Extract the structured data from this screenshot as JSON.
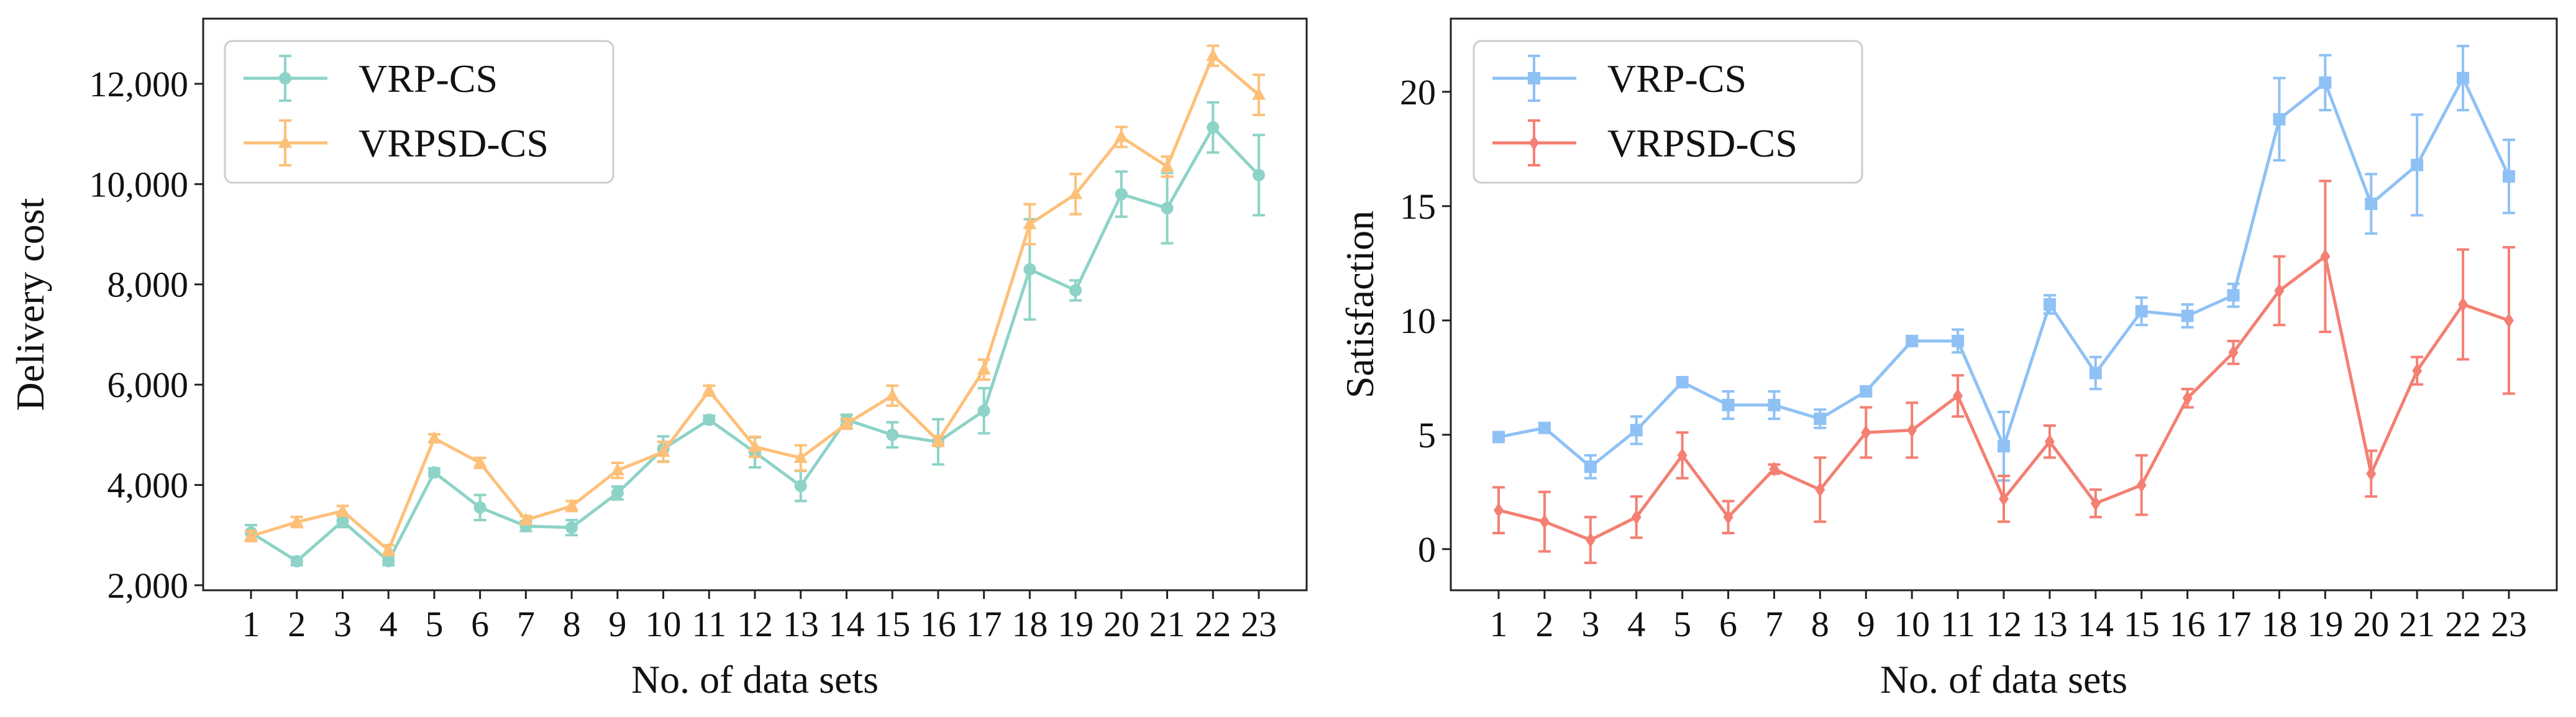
{
  "chart_data": [
    {
      "type": "line",
      "title": "",
      "xlabel": "No. of data sets",
      "ylabel": "Delivery cost",
      "x": [
        1,
        2,
        3,
        4,
        5,
        6,
        7,
        8,
        9,
        10,
        11,
        12,
        13,
        14,
        15,
        16,
        17,
        18,
        19,
        20,
        21,
        22,
        23
      ],
      "xticks": [
        "1",
        "2",
        "3",
        "4",
        "5",
        "6",
        "7",
        "8",
        "9",
        "10",
        "11",
        "12",
        "13",
        "14",
        "15",
        "16",
        "17",
        "18",
        "19",
        "20",
        "21",
        "22",
        "23"
      ],
      "ylim": [
        1900,
        13300
      ],
      "yticks": [
        2000,
        4000,
        6000,
        8000,
        10000,
        12000
      ],
      "ytick_labels": [
        "2,000",
        "4,000",
        "6,000",
        "8,000",
        "10,000",
        "12,000"
      ],
      "legend_position": "top-left",
      "series": [
        {
          "name": "VRP-CS",
          "color": "#8dd3c7",
          "marker": "circle",
          "values": [
            3050,
            2480,
            3280,
            2480,
            4250,
            3550,
            3180,
            3150,
            3840,
            4720,
            5300,
            4650,
            3980,
            5300,
            5000,
            4860,
            5480,
            8300,
            7880,
            9800,
            9520,
            11130,
            10180
          ],
          "errors": [
            150,
            80,
            120,
            80,
            80,
            250,
            100,
            150,
            130,
            250,
            80,
            300,
            300,
            100,
            250,
            450,
            450,
            1000,
            200,
            450,
            700,
            500,
            800
          ]
        },
        {
          "name": "VRPSD-CS",
          "color": "#fdc079",
          "marker": "triangle",
          "values": [
            2980,
            3260,
            3480,
            2700,
            4930,
            4440,
            3300,
            3580,
            4290,
            4660,
            5880,
            4760,
            4540,
            5220,
            5780,
            4880,
            6300,
            9200,
            9800,
            10940,
            10350,
            12560,
            11780
          ],
          "errors": [
            100,
            100,
            100,
            100,
            80,
            100,
            80,
            100,
            150,
            200,
            100,
            200,
            250,
            100,
            200,
            100,
            200,
            400,
            400,
            200,
            200,
            200,
            400
          ]
        }
      ]
    },
    {
      "type": "line",
      "title": "",
      "xlabel": "No. of data sets",
      "ylabel": "Satisfaction",
      "x": [
        1,
        2,
        3,
        4,
        5,
        6,
        7,
        8,
        9,
        10,
        11,
        12,
        13,
        14,
        15,
        16,
        17,
        18,
        19,
        20,
        21,
        22,
        23
      ],
      "xticks": [
        "1",
        "2",
        "3",
        "4",
        "5",
        "6",
        "7",
        "8",
        "9",
        "10",
        "11",
        "12",
        "13",
        "14",
        "15",
        "16",
        "17",
        "18",
        "19",
        "20",
        "21",
        "22",
        "23"
      ],
      "ylim": [
        -1.8,
        23.2
      ],
      "yticks": [
        0,
        5,
        10,
        15,
        20
      ],
      "ytick_labels": [
        "0",
        "5",
        "10",
        "15",
        "20"
      ],
      "legend_position": "top-left",
      "series": [
        {
          "name": "VRP-CS",
          "color": "#8fc1f5",
          "marker": "square",
          "values": [
            4.9,
            5.3,
            3.6,
            5.2,
            7.3,
            6.3,
            6.3,
            5.7,
            6.9,
            9.1,
            9.1,
            4.5,
            10.7,
            7.7,
            10.4,
            10.2,
            11.1,
            18.8,
            20.4,
            15.1,
            16.8,
            20.6,
            16.3
          ],
          "errors": [
            0.2,
            0.2,
            0.5,
            0.6,
            0.2,
            0.6,
            0.6,
            0.4,
            0.2,
            0.2,
            0.5,
            1.5,
            0.4,
            0.7,
            0.6,
            0.5,
            0.5,
            1.8,
            1.2,
            1.3,
            2.2,
            1.4,
            1.6
          ]
        },
        {
          "name": "VRPSD-CS",
          "color": "#f47f72",
          "marker": "diamond",
          "values": [
            1.7,
            1.2,
            0.4,
            1.4,
            4.1,
            1.4,
            3.5,
            2.6,
            5.1,
            5.2,
            6.7,
            2.2,
            4.7,
            2.0,
            2.8,
            6.6,
            8.6,
            11.3,
            12.8,
            3.3,
            7.8,
            10.7,
            10.0
          ],
          "errors": [
            1.0,
            1.3,
            1.0,
            0.9,
            1.0,
            0.7,
            0.2,
            1.4,
            1.1,
            1.2,
            0.9,
            1.0,
            0.7,
            0.6,
            1.3,
            0.4,
            0.5,
            1.5,
            3.3,
            1.0,
            0.6,
            2.4,
            3.2
          ]
        }
      ]
    }
  ]
}
